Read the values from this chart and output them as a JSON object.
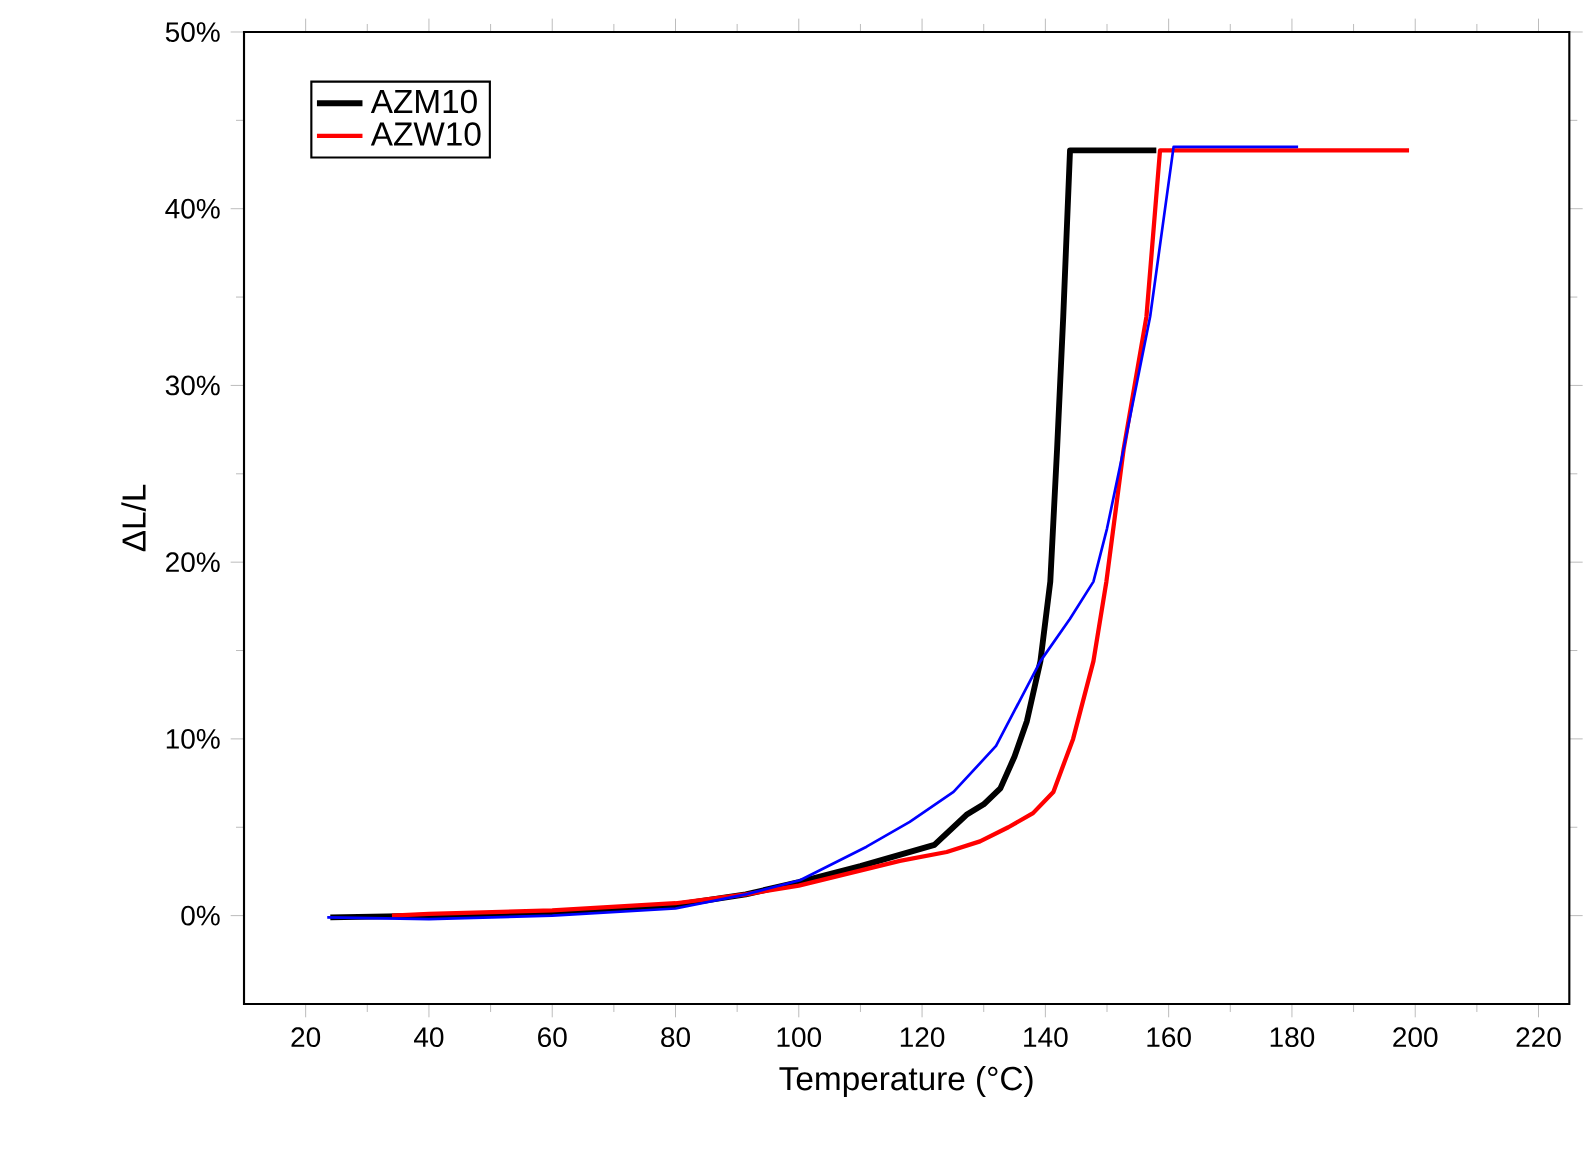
{
  "chart_data": {
    "type": "line",
    "xlabel": "Temperature (°C)",
    "ylabel": "ΔL/L",
    "xlim": [
      10,
      225
    ],
    "xticks": [
      20,
      40,
      60,
      80,
      100,
      120,
      140,
      160,
      180,
      200,
      220
    ],
    "ylim": [
      -5,
      50
    ],
    "yticks": [
      {
        "value": 0,
        "label": "0%"
      },
      {
        "value": 10,
        "label": "10%"
      },
      {
        "value": 20,
        "label": "20%"
      },
      {
        "value": 30,
        "label": "30%"
      },
      {
        "value": 40,
        "label": "40%"
      },
      {
        "value": 50,
        "label": "50%"
      }
    ],
    "legend": "top left",
    "series": [
      {
        "name": "AZM10",
        "color": "#000000",
        "x": [
          24,
          40,
          60,
          80,
          91.4,
          100,
          110,
          122,
          127.2,
          130,
          132.7,
          135,
          137,
          139.2,
          140.8,
          141.9,
          142.9,
          144,
          158
        ],
        "values": [
          -0.1,
          0,
          0.2,
          0.6,
          1.2,
          1.9,
          2.8,
          4.0,
          5.7,
          6.3,
          7.2,
          9,
          11,
          14.4,
          18.9,
          26.4,
          33.9,
          43.3,
          43.3
        ]
      },
      {
        "name": "AZW10",
        "color": "#ff0000",
        "x": [
          34,
          40,
          60,
          80,
          91.4,
          100,
          116.4,
          124,
          129.4,
          134,
          138,
          141.3,
          144.5,
          147.8,
          149.9,
          152.7,
          156.4,
          158.6,
          199
        ],
        "values": [
          0,
          0.1,
          0.3,
          0.7,
          1.2,
          1.7,
          3.1,
          3.6,
          4.2,
          5.0,
          5.8,
          7.0,
          10,
          14.4,
          18.9,
          26.4,
          33.9,
          43.3,
          43.3
        ]
      },
      {
        "color": "#0000ff",
        "x": [
          23.5,
          40,
          60,
          80,
          91.4,
          100.2,
          111,
          118,
          125.1,
          132,
          139.2,
          144,
          147.8,
          150,
          152.7,
          157,
          160.8,
          181
        ],
        "values": [
          -0.1,
          -0.2,
          0,
          0.4,
          1.2,
          2.0,
          3.9,
          5.3,
          7.0,
          9.6,
          14.4,
          16.8,
          18.9,
          21.9,
          26.4,
          33.9,
          43.5,
          43.5
        ]
      }
    ]
  }
}
